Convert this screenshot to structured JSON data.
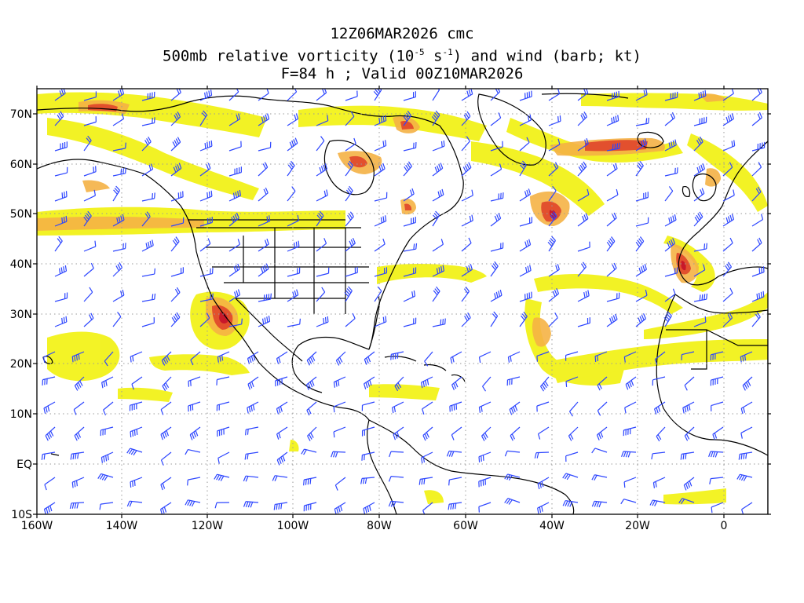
{
  "title": {
    "line1": "12Z06MAR2026 cmc",
    "line2_pre": "500mb relative vorticity (10",
    "line2_exp1": "-5",
    "line2_mid": " s",
    "line2_exp2": "-1",
    "line2_post": ") and wind (barb; kt)",
    "line3": "F=84 h ; Valid 00Z10MAR2026"
  },
  "axes": {
    "lon_labels": [
      "160W",
      "140W",
      "120W",
      "100W",
      "80W",
      "60W",
      "40W",
      "20W",
      "0"
    ],
    "lat_labels": [
      "70N",
      "60N",
      "50N",
      "40N",
      "30N",
      "20N",
      "10N",
      "EQ",
      "10S"
    ],
    "lon_range": [
      -160,
      10
    ],
    "lat_range": [
      -10,
      75
    ]
  },
  "colors": {
    "shade_light": "#f2f21a",
    "shade_pale": "#fff5a0",
    "shade_orange": "#f5b245",
    "shade_red": "#e0462a",
    "shade_dark": "#c8182a",
    "coast": "#000000",
    "barb": "#2c45ff",
    "grid": "#9a9a9a"
  }
}
